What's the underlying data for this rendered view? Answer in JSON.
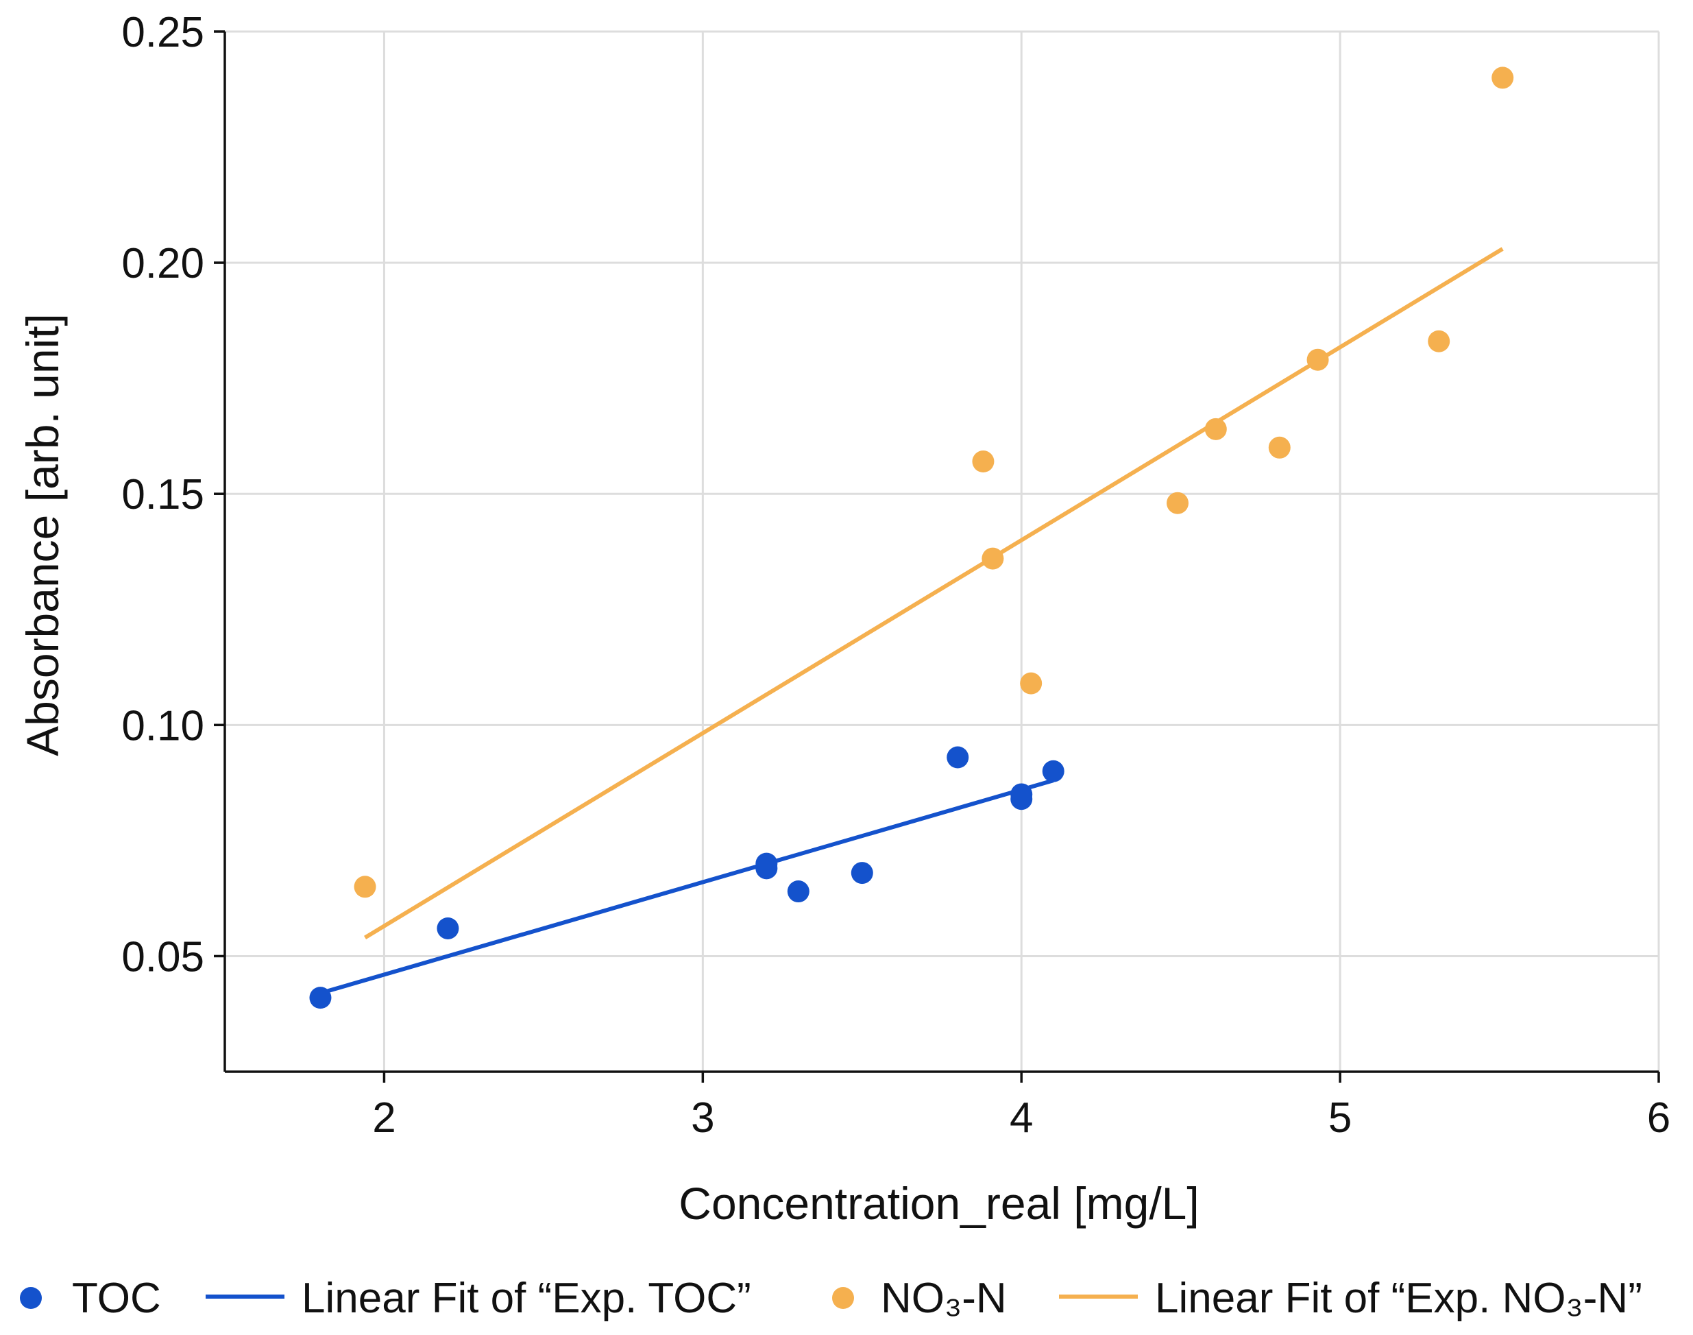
{
  "chart_data": {
    "type": "scatter",
    "title": "",
    "xlabel": "Concentration_real [mg/L]",
    "ylabel": "Absorbance [arb. unit]",
    "xlim": [
      1.5,
      6
    ],
    "ylim": [
      0.025,
      0.25
    ],
    "xticks": [
      2,
      3,
      4,
      5,
      6
    ],
    "xtick_labels": [
      "2",
      "3",
      "4",
      "5",
      "6"
    ],
    "yticks": [
      0.05,
      0.1,
      0.15,
      0.2,
      0.25
    ],
    "ytick_labels": [
      "0.05",
      "0.10",
      "0.15",
      "0.20",
      "0.25"
    ],
    "grid": true,
    "legend_position": "bottom",
    "series": [
      {
        "name": "TOC",
        "kind": "scatter",
        "color": "#1452cc",
        "x": [
          1.8,
          2.2,
          3.2,
          3.2,
          3.3,
          3.5,
          3.8,
          4.0,
          4.0,
          4.1
        ],
        "y": [
          0.041,
          0.056,
          0.07,
          0.069,
          0.064,
          0.068,
          0.093,
          0.085,
          0.084,
          0.09
        ]
      },
      {
        "name": "Linear Fit of “Exp. TOC”",
        "kind": "line",
        "color": "#1452cc",
        "x": [
          1.8,
          4.1
        ],
        "y": [
          0.042,
          0.088
        ]
      },
      {
        "name": "NO₃-N",
        "kind": "scatter",
        "color": "#f5b04f",
        "x": [
          1.94,
          3.88,
          3.91,
          4.03,
          4.49,
          4.61,
          4.81,
          4.93,
          5.31,
          5.51
        ],
        "y": [
          0.065,
          0.157,
          0.136,
          0.109,
          0.148,
          0.164,
          0.16,
          0.179,
          0.183,
          0.24
        ]
      },
      {
        "name": "Linear Fit of “Exp. NO₃-N”",
        "kind": "line",
        "color": "#f5b04f",
        "x": [
          1.94,
          5.51
        ],
        "y": [
          0.054,
          0.203
        ]
      }
    ]
  }
}
